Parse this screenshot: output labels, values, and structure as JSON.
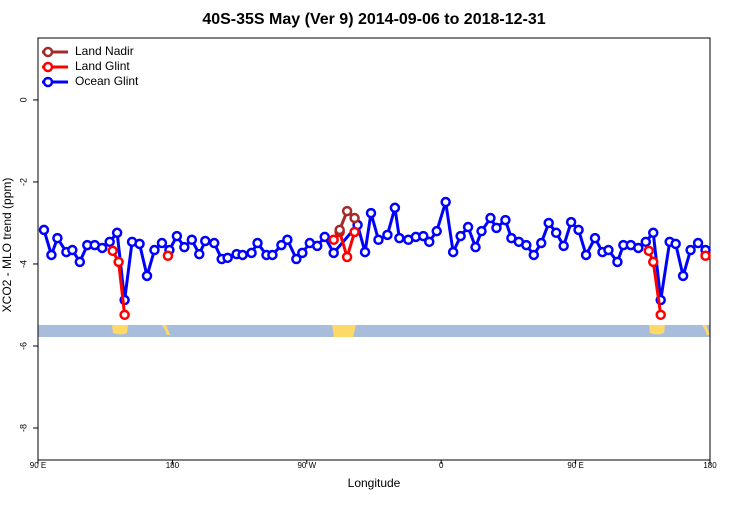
{
  "chart_data": {
    "type": "line",
    "title": "40S-35S May (Ver 9)   2014-09-06 to 2018-12-31",
    "x_label": "Longitude",
    "y_label": "XCO2 - MLO trend (ppm)",
    "xlim": [
      90,
      540
    ],
    "ylim": [
      1.51,
      -8.78
    ],
    "xticks": [
      {
        "value": 90,
        "label": "90 E"
      },
      180,
      {
        "value": 270,
        "label": "90 W"
      },
      {
        "value": 360,
        "label": "0"
      },
      {
        "value": 450,
        "label": "90 E"
      },
      {
        "value": 540,
        "label": "180"
      }
    ],
    "yticks": [
      0,
      -2,
      -4,
      -6,
      -8
    ],
    "legend": "top-left",
    "series": [
      {
        "name": "Land Nadir",
        "color": "#a52a2a",
        "x": [
          292,
          297,
          302
        ],
        "values": [
          -3.17,
          -2.71,
          -2.88
        ]
      },
      {
        "name": "Land Glint",
        "color": "#ff0000",
        "x": [
          140,
          144,
          148,
          160,
          177,
          230,
          288,
          292,
          297,
          302,
          400,
          499,
          502,
          507,
          520,
          537
        ],
        "values": [
          -3.68,
          -3.95,
          -5.24,
          null,
          -3.8,
          null,
          -3.41,
          -3.22,
          -3.83,
          -3.22,
          null,
          -3.68,
          -3.95,
          -5.24,
          null,
          -3.8
        ]
      },
      {
        "name": "Ocean Glint",
        "color": "#0000ff",
        "x": [
          94,
          99,
          103,
          109,
          113,
          118,
          123,
          128,
          133,
          138,
          143,
          148,
          153,
          158,
          163,
          168,
          173,
          178,
          183,
          188,
          193,
          198,
          202,
          208,
          213,
          217,
          223,
          227,
          233,
          237,
          243,
          247,
          253,
          257,
          263,
          267,
          272,
          277,
          282,
          288,
          304,
          309,
          313,
          318,
          324,
          329,
          332,
          338,
          343,
          348,
          352,
          357,
          363,
          368,
          373,
          378,
          383,
          387,
          393,
          397,
          403,
          407,
          412,
          417,
          422,
          427,
          432,
          437,
          442,
          447,
          452,
          457,
          463,
          468,
          472,
          478,
          482,
          487,
          492,
          497,
          502,
          507,
          513,
          517,
          522,
          527,
          532,
          537
        ],
        "values": [
          -3.17,
          -3.78,
          -3.37,
          -3.71,
          -3.66,
          -3.95,
          -3.54,
          -3.54,
          -3.61,
          -3.46,
          -3.24,
          -4.88,
          -3.46,
          -3.51,
          -4.29,
          -3.66,
          -3.49,
          -3.66,
          -3.32,
          -3.59,
          -3.41,
          -3.76,
          -3.44,
          -3.49,
          -3.88,
          -3.85,
          -3.76,
          -3.78,
          -3.73,
          -3.49,
          -3.78,
          -3.78,
          -3.54,
          -3.41,
          -3.88,
          -3.73,
          -3.49,
          -3.56,
          -3.34,
          -3.73,
          -3.05,
          -3.71,
          -2.76,
          -3.41,
          -3.29,
          -2.63,
          -3.37,
          -3.41,
          -3.34,
          -3.32,
          -3.46,
          -3.2,
          -2.49,
          -3.71,
          -3.32,
          -3.1,
          -3.59,
          -3.2,
          -2.88,
          -3.12,
          -2.93,
          -3.37,
          -3.46,
          -3.54,
          -3.78,
          -3.49,
          -3.0,
          -3.24,
          -3.56,
          -2.98,
          -3.17,
          -3.78,
          -3.37,
          -3.71,
          -3.66,
          -3.95,
          -3.54,
          -3.54,
          -3.61,
          -3.46,
          -3.24,
          -4.88,
          -3.46,
          -3.51,
          -4.29,
          -3.66,
          -3.49,
          -3.66
        ]
      }
    ]
  }
}
